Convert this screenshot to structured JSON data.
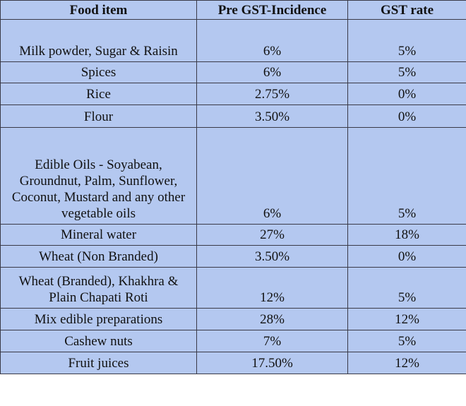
{
  "table": {
    "header": [
      "Food item",
      "Pre GST-Incidence",
      "GST rate"
    ],
    "rows": [
      [
        "Milk powder, Sugar & Raisin",
        "6%",
        "5%"
      ],
      [
        "Spices",
        "6%",
        "5%"
      ],
      [
        "Rice",
        "2.75%",
        "0%"
      ],
      [
        "Flour",
        "3.50%",
        "0%"
      ],
      [
        "Edible Oils - Soyabean, Groundnut, Palm, Sunflower, Coconut, Mustard and any other vegetable oils",
        "6%",
        "5%"
      ],
      [
        "Mineral water",
        "27%",
        "18%"
      ],
      [
        "Wheat (Non Branded)",
        "3.50%",
        "0%"
      ],
      [
        "Wheat (Branded), Khakhra & Plain Chapati Roti",
        "12%",
        "5%"
      ],
      [
        "Mix edible preparations",
        "28%",
        "12%"
      ],
      [
        "Cashew nuts",
        "7%",
        "5%"
      ],
      [
        "Fruit juices",
        "17.50%",
        "12%"
      ]
    ]
  }
}
